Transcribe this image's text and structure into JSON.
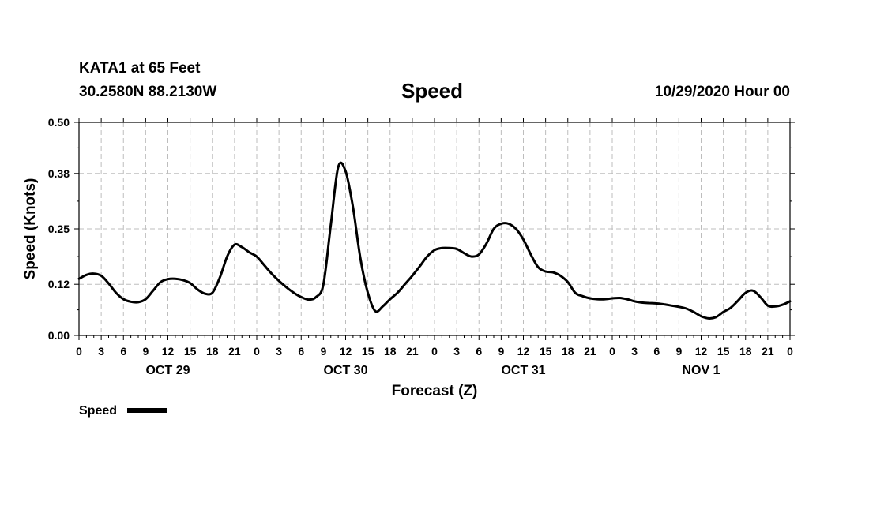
{
  "header": {
    "station": "KATA1 at 65 Feet",
    "coords": "30.2580N 88.2130W",
    "title": "Speed",
    "stamp": "10/29/2020 Hour 00"
  },
  "chart_data": {
    "type": "line",
    "title": "Speed",
    "xlabel": "Forecast (Z)",
    "ylabel": "Speed (Knots)",
    "ylim": [
      0,
      0.5
    ],
    "yticks": [
      "0.00",
      "0.12",
      "0.25",
      "0.38",
      "0.50"
    ],
    "xlim": [
      0,
      96
    ],
    "xtick_labels": [
      "0",
      "3",
      "6",
      "9",
      "12",
      "15",
      "18",
      "21",
      "0",
      "3",
      "6",
      "9",
      "12",
      "15",
      "18",
      "21",
      "0",
      "3",
      "6",
      "9",
      "12",
      "15",
      "18",
      "21",
      "0",
      "3",
      "6",
      "9",
      "12",
      "15",
      "18",
      "21",
      "0"
    ],
    "day_labels": [
      {
        "label": "OCT 29",
        "hour": 12
      },
      {
        "label": "OCT 30",
        "hour": 36
      },
      {
        "label": "OCT 31",
        "hour": 60
      },
      {
        "label": "NOV 1",
        "hour": 84
      }
    ],
    "grid": true,
    "legend": "bottom-left",
    "series": [
      {
        "name": "Speed",
        "color": "#000000",
        "x": [
          0,
          1,
          2,
          3,
          4,
          5,
          6,
          7,
          8,
          9,
          10,
          11,
          12,
          13,
          14,
          15,
          16,
          17,
          18,
          19,
          20,
          21,
          22,
          23,
          24,
          25,
          26,
          27,
          28,
          29,
          30,
          31,
          32,
          33,
          34,
          35,
          36,
          37,
          38,
          39,
          40,
          41,
          42,
          43,
          44,
          45,
          46,
          47,
          48,
          49,
          50,
          51,
          52,
          53,
          54,
          55,
          56,
          57,
          58,
          59,
          60,
          61,
          62,
          63,
          64,
          65,
          66,
          67,
          68,
          69,
          70,
          71,
          72,
          73,
          74,
          75,
          76,
          77,
          78,
          79,
          80,
          81,
          82,
          83,
          84,
          85,
          86,
          87,
          88,
          89,
          90,
          91,
          92,
          93,
          94,
          95,
          96
        ],
        "y": [
          0.133,
          0.142,
          0.145,
          0.14,
          0.122,
          0.1,
          0.085,
          0.079,
          0.078,
          0.085,
          0.105,
          0.125,
          0.132,
          0.133,
          0.13,
          0.123,
          0.108,
          0.098,
          0.1,
          0.135,
          0.185,
          0.213,
          0.207,
          0.195,
          0.185,
          0.165,
          0.145,
          0.128,
          0.113,
          0.1,
          0.09,
          0.084,
          0.09,
          0.12,
          0.26,
          0.395,
          0.385,
          0.3,
          0.18,
          0.1,
          0.057,
          0.068,
          0.085,
          0.1,
          0.12,
          0.14,
          0.162,
          0.185,
          0.2,
          0.205,
          0.205,
          0.203,
          0.193,
          0.185,
          0.19,
          0.215,
          0.25,
          0.262,
          0.262,
          0.25,
          0.225,
          0.19,
          0.16,
          0.15,
          0.148,
          0.14,
          0.125,
          0.1,
          0.092,
          0.087,
          0.085,
          0.085,
          0.087,
          0.088,
          0.085,
          0.08,
          0.077,
          0.076,
          0.075,
          0.073,
          0.07,
          0.067,
          0.063,
          0.055,
          0.045,
          0.04,
          0.043,
          0.055,
          0.065,
          0.082,
          0.1,
          0.105,
          0.09,
          0.07,
          0.068,
          0.072,
          0.08
        ]
      }
    ]
  }
}
